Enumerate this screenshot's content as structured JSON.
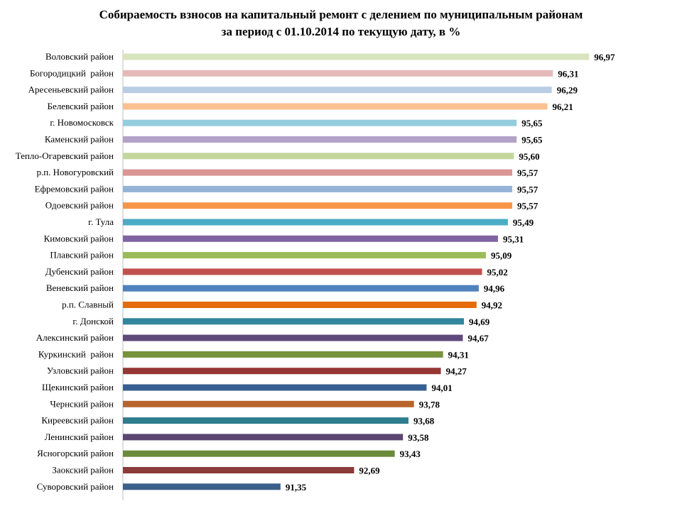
{
  "chart_data": {
    "type": "bar",
    "orientation": "horizontal",
    "title_line1": "Собираемость взносов на капитальный ремонт с делением по муниципальным районам",
    "title_line2": "за период с 01.10.2014 по текущую дату, в %",
    "xlabel": "",
    "ylabel": "",
    "grid": false,
    "legend": "none",
    "categories": [
      "Воловский район",
      "Богородицкий  район",
      "Аресеньевский район",
      "Белевский район",
      "г. Новомосковск",
      "Каменский район",
      "Тепло-Огаревский район",
      "р.п. Новогуровский",
      "Ефремовский район",
      "Одоевский район",
      "г. Тула",
      "Кимовский район",
      "Плавский район",
      "Дубенский район",
      "Веневский район",
      "р.п. Славный",
      "г. Донской",
      "Алексинский район",
      "Куркинский  район",
      "Узловский район",
      "Щекинский район",
      "Чернский район",
      "Киреевский район",
      "Ленинский район",
      "Ясногорский район",
      "Заокский район",
      "Суворовский район"
    ],
    "values": [
      96.97,
      96.31,
      96.29,
      96.21,
      95.65,
      95.65,
      95.6,
      95.57,
      95.57,
      95.57,
      95.49,
      95.31,
      95.09,
      95.02,
      94.96,
      94.92,
      94.69,
      94.67,
      94.31,
      94.27,
      94.01,
      93.78,
      93.68,
      93.58,
      93.43,
      92.69,
      91.35
    ],
    "value_labels": [
      "96,97",
      "96,31",
      "96,29",
      "96,21",
      "95,65",
      "95,65",
      "95,60",
      "95,57",
      "95,57",
      "95,57",
      "95,49",
      "95,31",
      "95,09",
      "95,02",
      "94,96",
      "94,92",
      "94,69",
      "94,67",
      "94,31",
      "94,27",
      "94,01",
      "93,78",
      "93,68",
      "93,58",
      "93,43",
      "92,69",
      "91,35"
    ],
    "colors": [
      "#d7e4bd",
      "#e6b9b8",
      "#b9cde5",
      "#fac090",
      "#93cddd",
      "#b3a2c7",
      "#c3d69b",
      "#d99694",
      "#95b3d7",
      "#f79646",
      "#4bacc6",
      "#8064a2",
      "#9bbb59",
      "#c0504d",
      "#4f81bd",
      "#e46c0a",
      "#31859c",
      "#604a7b",
      "#77933c",
      "#953735",
      "#376092",
      "#b7642b",
      "#2e7d8c",
      "#5a4670",
      "#6a8a3c",
      "#8b3a3a",
      "#3a5f8a"
    ],
    "xlim": [
      88.5,
      97.5
    ]
  }
}
